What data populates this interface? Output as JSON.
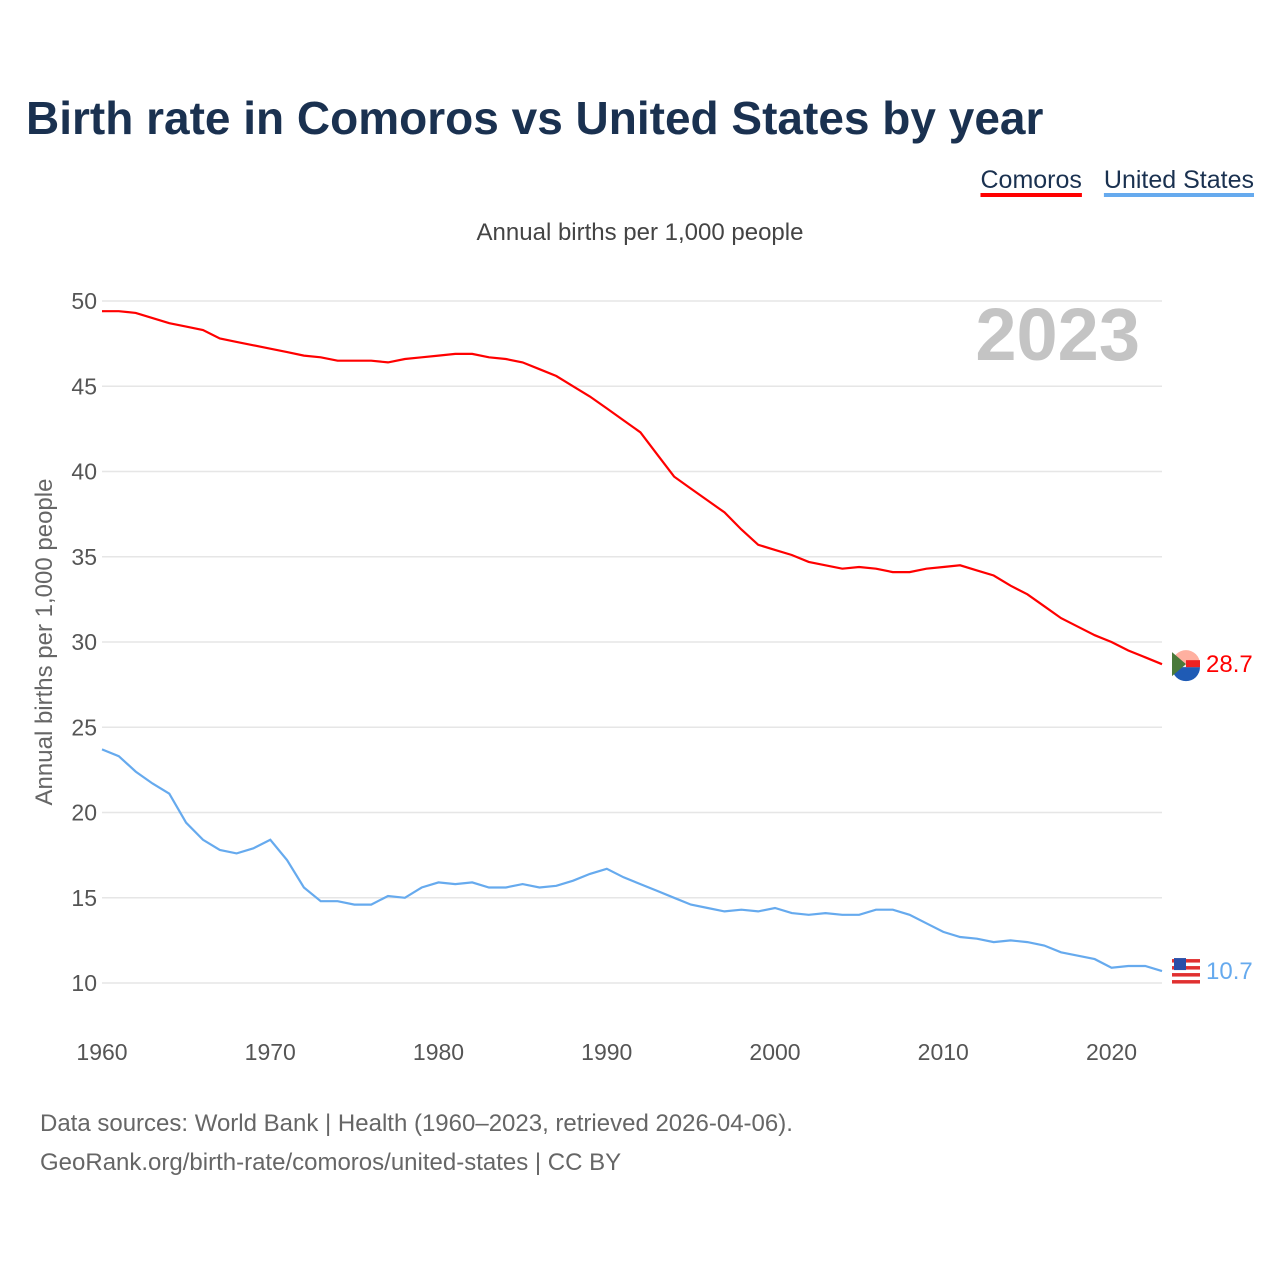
{
  "chart_data": {
    "type": "line",
    "title": "Birth rate in Comoros vs United States by year",
    "subtitle": "Annual births per 1,000 people",
    "ylabel": "Annual births per 1,000 people",
    "xlabel": "",
    "xlim": [
      1960,
      2023
    ],
    "ylim": [
      10,
      50
    ],
    "xticks": [
      1960,
      1970,
      1980,
      1990,
      2000,
      2010,
      2020
    ],
    "yticks": [
      10,
      15,
      20,
      25,
      30,
      35,
      40,
      45,
      50
    ],
    "grid": true,
    "legend_position": "top-right",
    "year_label": "2023",
    "x": [
      1960,
      1961,
      1962,
      1963,
      1964,
      1965,
      1966,
      1967,
      1968,
      1969,
      1970,
      1971,
      1972,
      1973,
      1974,
      1975,
      1976,
      1977,
      1978,
      1979,
      1980,
      1981,
      1982,
      1983,
      1984,
      1985,
      1986,
      1987,
      1988,
      1989,
      1990,
      1991,
      1992,
      1993,
      1994,
      1995,
      1996,
      1997,
      1998,
      1999,
      2000,
      2001,
      2002,
      2003,
      2004,
      2005,
      2006,
      2007,
      2008,
      2009,
      2010,
      2011,
      2012,
      2013,
      2014,
      2015,
      2016,
      2017,
      2018,
      2019,
      2020,
      2021,
      2022,
      2023
    ],
    "series": [
      {
        "name": "Comoros",
        "color": "#ff0000",
        "end_label": "28.7",
        "values": [
          49.4,
          49.4,
          49.3,
          49.0,
          48.7,
          48.5,
          48.3,
          47.8,
          47.6,
          47.4,
          47.2,
          47.0,
          46.8,
          46.7,
          46.5,
          46.5,
          46.5,
          46.4,
          46.6,
          46.7,
          46.8,
          46.9,
          46.9,
          46.7,
          46.6,
          46.4,
          46.0,
          45.6,
          45.0,
          44.4,
          43.7,
          43.0,
          42.3,
          41.0,
          39.7,
          39.0,
          38.3,
          37.6,
          36.6,
          35.7,
          35.4,
          35.1,
          34.7,
          34.5,
          34.3,
          34.4,
          34.3,
          34.1,
          34.1,
          34.3,
          34.4,
          34.5,
          34.2,
          33.9,
          33.3,
          32.8,
          32.1,
          31.4,
          30.9,
          30.4,
          30.0,
          29.5,
          29.1,
          28.7
        ]
      },
      {
        "name": "United States",
        "color": "#66aaee",
        "end_label": "10.7",
        "values": [
          23.7,
          23.3,
          22.4,
          21.7,
          21.1,
          19.4,
          18.4,
          17.8,
          17.6,
          17.9,
          18.4,
          17.2,
          15.6,
          14.8,
          14.8,
          14.6,
          14.6,
          15.1,
          15.0,
          15.6,
          15.9,
          15.8,
          15.9,
          15.6,
          15.6,
          15.8,
          15.6,
          15.7,
          16.0,
          16.4,
          16.7,
          16.2,
          15.8,
          15.4,
          15.0,
          14.6,
          14.4,
          14.2,
          14.3,
          14.2,
          14.4,
          14.1,
          14.0,
          14.1,
          14.0,
          14.0,
          14.3,
          14.3,
          14.0,
          13.5,
          13.0,
          12.7,
          12.6,
          12.4,
          12.5,
          12.4,
          12.2,
          11.8,
          11.6,
          11.4,
          10.9,
          11.0,
          11.0,
          10.7
        ]
      }
    ]
  },
  "footer": {
    "line1": "Data sources: World Bank | Health (1960–2023, retrieved 2026-04-06).",
    "line2": "GeoRank.org/birth-rate/comoros/united-states | CC BY"
  }
}
